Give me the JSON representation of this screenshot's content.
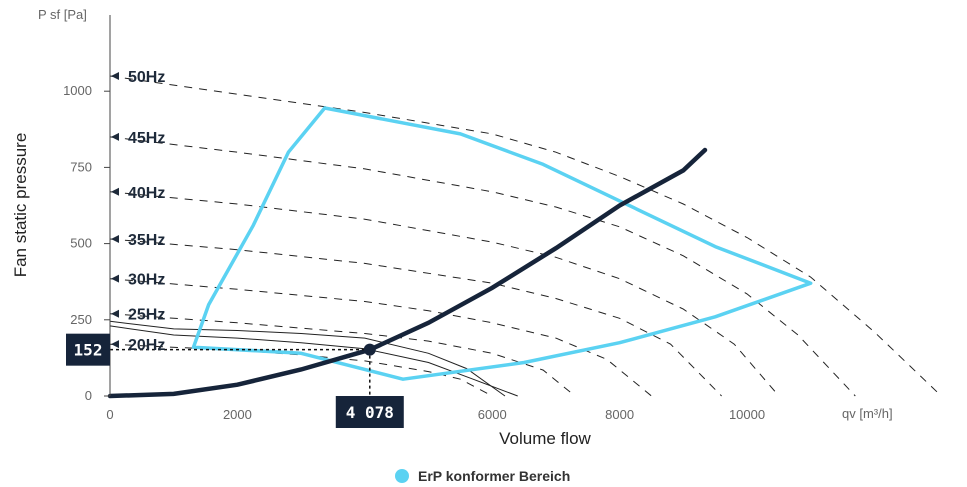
{
  "chart_data": {
    "type": "line",
    "y_axis_title": "P sf [Pa]",
    "ylabel": "Fan static pressure",
    "xlabel": "Volume flow",
    "x_unit": "qv [m³/h]",
    "xlim": [
      0,
      13500
    ],
    "ylim": [
      0,
      1250
    ],
    "x_ticks": [
      {
        "value": 0,
        "label": "0"
      },
      {
        "value": 2000,
        "label": "2000"
      },
      {
        "value": 4000,
        "label": "4000"
      },
      {
        "value": 6000,
        "label": "6000"
      },
      {
        "value": 8000,
        "label": "8000"
      },
      {
        "value": 10000,
        "label": "10000"
      }
    ],
    "y_ticks": [
      {
        "value": 0,
        "label": "0"
      },
      {
        "value": 250,
        "label": "250"
      },
      {
        "value": 500,
        "label": "500"
      },
      {
        "value": 750,
        "label": "750"
      },
      {
        "value": 1000,
        "label": "1000"
      }
    ],
    "frequency_curves": [
      {
        "label": "50Hz",
        "points": [
          [
            0,
            1050
          ],
          [
            2000,
            990
          ],
          [
            4000,
            930
          ],
          [
            6000,
            860
          ],
          [
            7000,
            800
          ],
          [
            8000,
            720
          ],
          [
            9000,
            630
          ],
          [
            10000,
            520
          ],
          [
            11000,
            390
          ],
          [
            12000,
            210
          ],
          [
            13050,
            0
          ]
        ]
      },
      {
        "label": "45Hz",
        "points": [
          [
            0,
            850
          ],
          [
            2000,
            800
          ],
          [
            4000,
            745
          ],
          [
            6000,
            670
          ],
          [
            7000,
            620
          ],
          [
            8000,
            555
          ],
          [
            9000,
            460
          ],
          [
            10000,
            335
          ],
          [
            10800,
            200
          ],
          [
            11700,
            0
          ]
        ]
      },
      {
        "label": "40Hz",
        "points": [
          [
            0,
            670
          ],
          [
            2000,
            630
          ],
          [
            4000,
            580
          ],
          [
            6000,
            505
          ],
          [
            7000,
            455
          ],
          [
            8000,
            385
          ],
          [
            9000,
            285
          ],
          [
            9800,
            170
          ],
          [
            10500,
            0
          ]
        ]
      },
      {
        "label": "35Hz",
        "points": [
          [
            0,
            515
          ],
          [
            2000,
            480
          ],
          [
            4000,
            435
          ],
          [
            6000,
            370
          ],
          [
            7000,
            320
          ],
          [
            8000,
            255
          ],
          [
            8800,
            170
          ],
          [
            9600,
            0
          ]
        ]
      },
      {
        "label": "30Hz",
        "points": [
          [
            0,
            385
          ],
          [
            2000,
            350
          ],
          [
            4000,
            310
          ],
          [
            5000,
            280
          ],
          [
            6000,
            240
          ],
          [
            7000,
            190
          ],
          [
            7800,
            120
          ],
          [
            8500,
            0
          ]
        ]
      },
      {
        "label": "25Hz",
        "points": [
          [
            0,
            270
          ],
          [
            2000,
            240
          ],
          [
            4000,
            205
          ],
          [
            5000,
            180
          ],
          [
            6000,
            140
          ],
          [
            6800,
            85
          ],
          [
            7300,
            0
          ]
        ]
      },
      {
        "label": "20Hz",
        "points": [
          [
            0,
            170
          ],
          [
            2000,
            150
          ],
          [
            3000,
            135
          ],
          [
            4000,
            115
          ],
          [
            5000,
            80
          ],
          [
            5500,
            55
          ],
          [
            6000,
            0
          ]
        ]
      }
    ],
    "max_curves": [
      {
        "points": [
          [
            0,
            245
          ],
          [
            1000,
            220
          ],
          [
            2000,
            215
          ],
          [
            3000,
            205
          ],
          [
            4000,
            190
          ],
          [
            5000,
            140
          ],
          [
            5600,
            90
          ],
          [
            6200,
            0
          ]
        ]
      },
      {
        "points": [
          [
            0,
            230
          ],
          [
            1000,
            200
          ],
          [
            2000,
            190
          ],
          [
            3000,
            175
          ],
          [
            4000,
            155
          ],
          [
            5000,
            110
          ],
          [
            5700,
            55
          ],
          [
            6400,
            0
          ]
        ]
      }
    ],
    "series": [
      {
        "name": "ErP konformer Bereich",
        "color": "#5bd2f2",
        "points": [
          [
            1310,
            160
          ],
          [
            1550,
            300
          ],
          [
            2250,
            560
          ],
          [
            2800,
            800
          ],
          [
            3370,
            945
          ],
          [
            5500,
            860
          ],
          [
            6800,
            760
          ],
          [
            8000,
            640
          ],
          [
            9500,
            490
          ],
          [
            11000,
            370
          ],
          [
            9500,
            260
          ],
          [
            8000,
            175
          ],
          [
            6500,
            110
          ],
          [
            4600,
            55
          ],
          [
            3000,
            140
          ],
          [
            1310,
            160
          ]
        ]
      }
    ],
    "system_curve": {
      "color": "#16243a",
      "points": [
        [
          0,
          0
        ],
        [
          1000,
          7
        ],
        [
          2000,
          37
        ],
        [
          3000,
          87
        ],
        [
          4078,
          152
        ],
        [
          5000,
          240
        ],
        [
          6000,
          355
        ],
        [
          7000,
          485
        ],
        [
          8000,
          625
        ],
        [
          9000,
          740
        ],
        [
          9340,
          807
        ]
      ]
    },
    "operating_point": {
      "x": 4078,
      "y": 152,
      "x_label": "4 078",
      "y_label": "152"
    },
    "legend_position": "bottom-center",
    "grid": false
  },
  "legend": {
    "label": "ErP konformer Bereich",
    "color": "#5bd2f2"
  }
}
